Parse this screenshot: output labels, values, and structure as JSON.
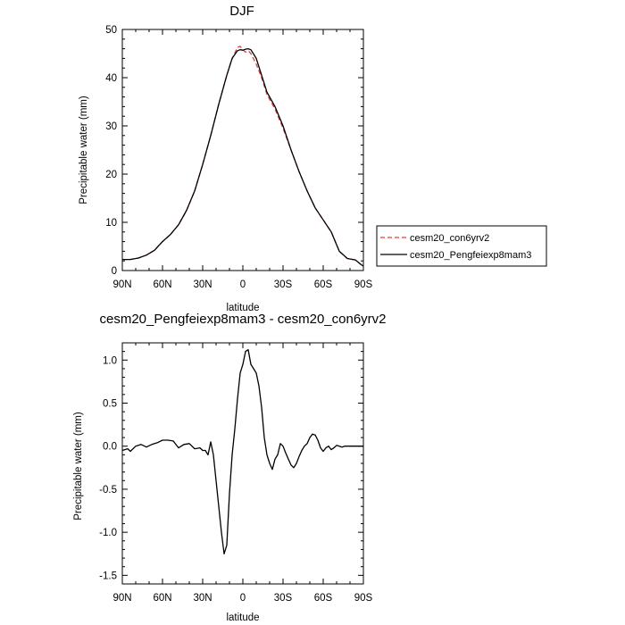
{
  "chart_data": [
    {
      "type": "line",
      "title": "DJF",
      "xlabel": "latitude",
      "ylabel": "Precipitable water (mm)",
      "xlim": [
        90,
        -90
      ],
      "ylim": [
        0,
        50
      ],
      "x_ticks": [
        90,
        60,
        30,
        0,
        -30,
        -60,
        -90
      ],
      "x_tick_labels": [
        "90N",
        "60N",
        "30N",
        "0",
        "30S",
        "60S",
        "90S"
      ],
      "y_ticks": [
        0,
        10,
        20,
        30,
        40,
        50
      ],
      "y_tick_labels": [
        "0",
        "10",
        "20",
        "30",
        "40",
        "50"
      ],
      "legend_position": "right",
      "series": [
        {
          "name": "cesm20_con6yrv2",
          "color": "#e04040",
          "dash": "dashed",
          "x": [
            90,
            84,
            78,
            72,
            66,
            60,
            54,
            48,
            42,
            36,
            30,
            24,
            18,
            12,
            8,
            4,
            2,
            0,
            -2,
            -4,
            -6,
            -10,
            -14,
            -18,
            -24,
            -30,
            -36,
            -42,
            -48,
            -54,
            -60,
            -66,
            -72,
            -78,
            -84,
            -88,
            -90
          ],
          "y": [
            2.3,
            2.3,
            2.6,
            3.2,
            4.2,
            6.0,
            7.5,
            9.5,
            12.5,
            16.5,
            22.0,
            28.0,
            34.5,
            40.5,
            44.0,
            46.3,
            46.5,
            45.8,
            45.3,
            45.6,
            45.0,
            42.8,
            40.0,
            36.5,
            33.5,
            29.5,
            25.0,
            20.5,
            16.5,
            13.0,
            10.5,
            8.0,
            4.0,
            2.5,
            2.2,
            1.3,
            0.9
          ]
        },
        {
          "name": "cesm20_Pengfeiexp8mam3",
          "color": "#000000",
          "dash": "solid",
          "x": [
            90,
            84,
            78,
            72,
            66,
            60,
            54,
            48,
            42,
            36,
            30,
            24,
            18,
            12,
            8,
            4,
            2,
            0,
            -2,
            -4,
            -6,
            -10,
            -14,
            -18,
            -24,
            -30,
            -36,
            -42,
            -48,
            -54,
            -60,
            -66,
            -72,
            -78,
            -84,
            -88,
            -90
          ],
          "y": [
            2.3,
            2.3,
            2.6,
            3.2,
            4.2,
            6.0,
            7.5,
            9.5,
            12.5,
            16.5,
            22.0,
            28.0,
            34.5,
            40.5,
            44.0,
            45.6,
            45.8,
            45.7,
            45.9,
            46.0,
            45.8,
            44.0,
            40.5,
            37.0,
            34.0,
            30.0,
            25.0,
            20.5,
            16.5,
            13.0,
            10.5,
            8.0,
            4.0,
            2.5,
            2.2,
            1.3,
            0.9
          ]
        }
      ]
    },
    {
      "type": "line",
      "title": "cesm20_Pengfeiexp8mam3 - cesm20_con6yrv2",
      "xlabel": "latitude",
      "ylabel": "Precipitable water (mm)",
      "xlim": [
        90,
        -90
      ],
      "ylim": [
        -1.6,
        1.2
      ],
      "x_ticks": [
        90,
        60,
        30,
        0,
        -30,
        -60,
        -90
      ],
      "x_tick_labels": [
        "90N",
        "60N",
        "30N",
        "0",
        "30S",
        "60S",
        "90S"
      ],
      "y_ticks": [
        -1.5,
        -1.0,
        -0.5,
        0.0,
        0.5,
        1.0
      ],
      "y_tick_labels": [
        "-1.5",
        "-1.0",
        "-0.5",
        "0.0",
        "0.5",
        "1.0"
      ],
      "series": [
        {
          "color": "#000000",
          "dash": "solid",
          "x": [
            90,
            86,
            84,
            80,
            76,
            72,
            68,
            64,
            60,
            56,
            52,
            48,
            44,
            40,
            36,
            32,
            30,
            28,
            26,
            24,
            22,
            20,
            18,
            16,
            14,
            12,
            10,
            8,
            6,
            4,
            2,
            0,
            -2,
            -4,
            -6,
            -8,
            -10,
            -12,
            -14,
            -16,
            -18,
            -20,
            -22,
            -24,
            -26,
            -28,
            -30,
            -32,
            -34,
            -36,
            -38,
            -40,
            -42,
            -44,
            -46,
            -48,
            -50,
            -52,
            -54,
            -56,
            -58,
            -60,
            -62,
            -64,
            -66,
            -68,
            -70,
            -72,
            -74,
            -76,
            -78,
            -80,
            -82,
            -84,
            -86,
            -88,
            -90
          ],
          "y": [
            -0.05,
            -0.03,
            -0.06,
            0.0,
            0.02,
            -0.01,
            0.02,
            0.04,
            0.07,
            0.07,
            0.06,
            -0.02,
            0.02,
            0.03,
            -0.03,
            -0.02,
            -0.05,
            -0.05,
            -0.1,
            0.05,
            -0.1,
            -0.4,
            -0.7,
            -1.0,
            -1.25,
            -1.15,
            -0.55,
            -0.1,
            0.2,
            0.55,
            0.85,
            0.95,
            1.1,
            1.12,
            0.95,
            0.9,
            0.85,
            0.7,
            0.45,
            0.1,
            -0.1,
            -0.2,
            -0.27,
            -0.15,
            -0.1,
            0.03,
            0.0,
            -0.08,
            -0.15,
            -0.22,
            -0.25,
            -0.2,
            -0.12,
            -0.05,
            0.0,
            0.03,
            0.1,
            0.14,
            0.13,
            0.07,
            -0.02,
            -0.06,
            -0.02,
            0.0,
            -0.04,
            -0.02,
            0.01,
            0.0,
            -0.01,
            0.0,
            0.0,
            0.0,
            0.0,
            0.0,
            0.0,
            0.0,
            0.0
          ]
        }
      ]
    }
  ]
}
